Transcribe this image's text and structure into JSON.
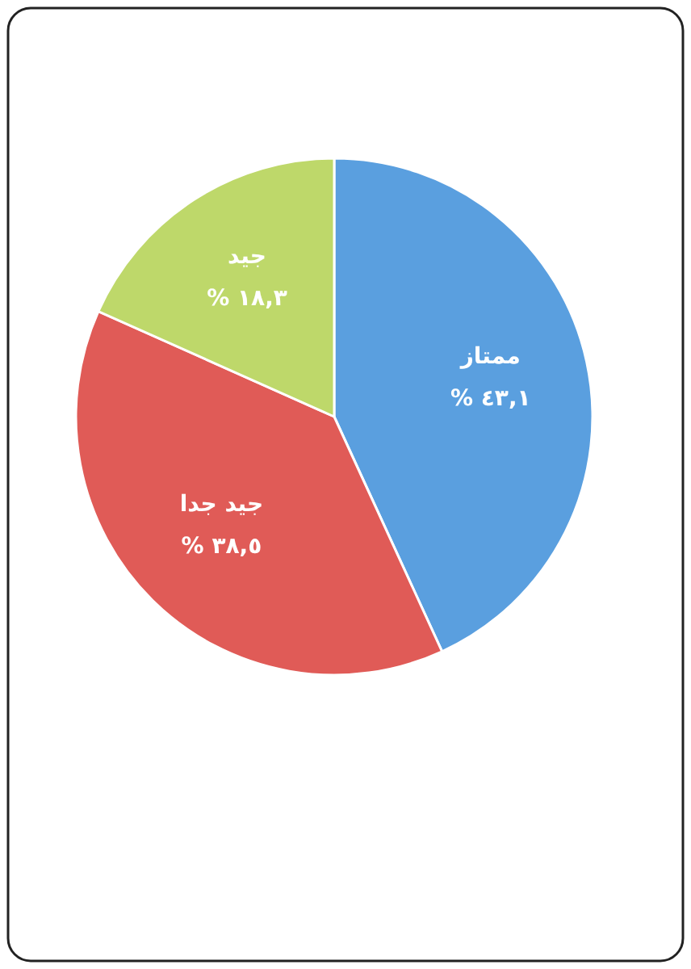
{
  "chart_data": {
    "type": "pie",
    "categories": [
      "ممتاز",
      "جيد جدا",
      "جيد"
    ],
    "values": [
      43.1,
      38.5,
      18.3
    ],
    "colors": [
      "#5a9fdf",
      "#e05b57",
      "#bed86a"
    ],
    "value_labels": [
      "٤٣,١ %",
      "٣٨,٥ %",
      "١٨,٣ %"
    ]
  }
}
